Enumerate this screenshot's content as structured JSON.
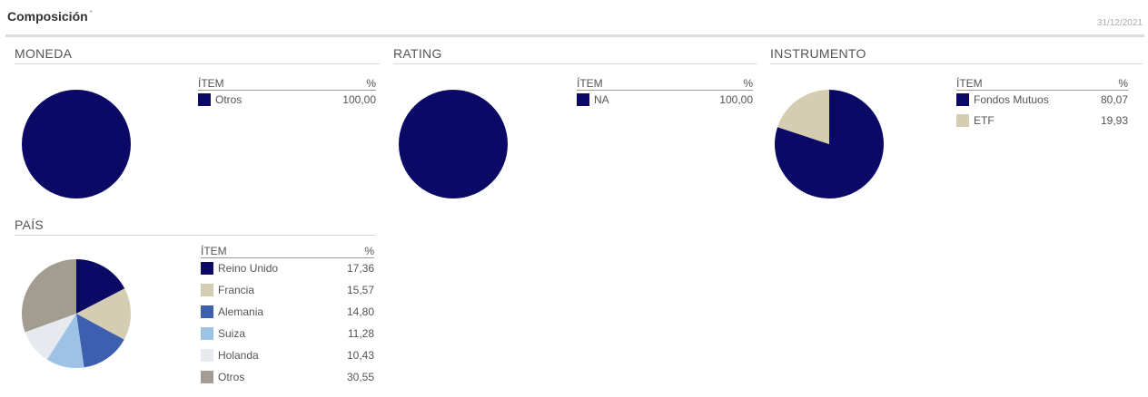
{
  "page": {
    "title": "Composición",
    "title_mark": "*",
    "date": "31/12/2021"
  },
  "legend_headers": {
    "item": "ÍTEM",
    "pct": "%"
  },
  "chart_data": [
    {
      "type": "pie",
      "title": "MONEDA",
      "categories": [
        "Otros"
      ],
      "values": [
        100.0
      ],
      "labels": [
        "100,00"
      ],
      "colors": [
        "#0a0a66"
      ]
    },
    {
      "type": "pie",
      "title": "RATING",
      "categories": [
        "NA"
      ],
      "values": [
        100.0
      ],
      "labels": [
        "100,00"
      ],
      "colors": [
        "#0a0a66"
      ]
    },
    {
      "type": "pie",
      "title": "INSTRUMENTO",
      "categories": [
        "Fondos Mutuos",
        "ETF"
      ],
      "values": [
        80.07,
        19.93
      ],
      "labels": [
        "80,07",
        "19,93"
      ],
      "colors": [
        "#0a0a66",
        "#d4cdb1"
      ]
    },
    {
      "type": "pie",
      "title": "PAÍS",
      "categories": [
        "Reino Unido",
        "Francia",
        "Alemania",
        "Suiza",
        "Holanda",
        "Otros"
      ],
      "values": [
        17.36,
        15.57,
        14.8,
        11.28,
        10.43,
        30.55
      ],
      "labels": [
        "17,36",
        "15,57",
        "14,80",
        "11,28",
        "10,43",
        "30,55"
      ],
      "colors": [
        "#0a0a66",
        "#d4cdb1",
        "#3d5fb0",
        "#9ec2e6",
        "#e6e9ee",
        "#a39d91"
      ]
    }
  ]
}
